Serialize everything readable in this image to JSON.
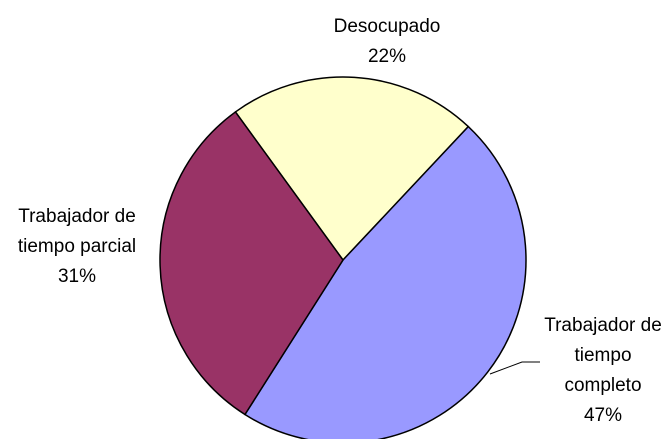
{
  "chart_data": {
    "type": "pie",
    "categories": [
      "Desocupado",
      "Trabajador de tiempo completo",
      "Trabajador de tiempo parcial"
    ],
    "values": [
      22,
      47,
      31
    ],
    "value_labels": [
      "22%",
      "47%",
      "31%"
    ],
    "colors": [
      "#ffffcc",
      "#9999ff",
      "#993366"
    ]
  }
}
